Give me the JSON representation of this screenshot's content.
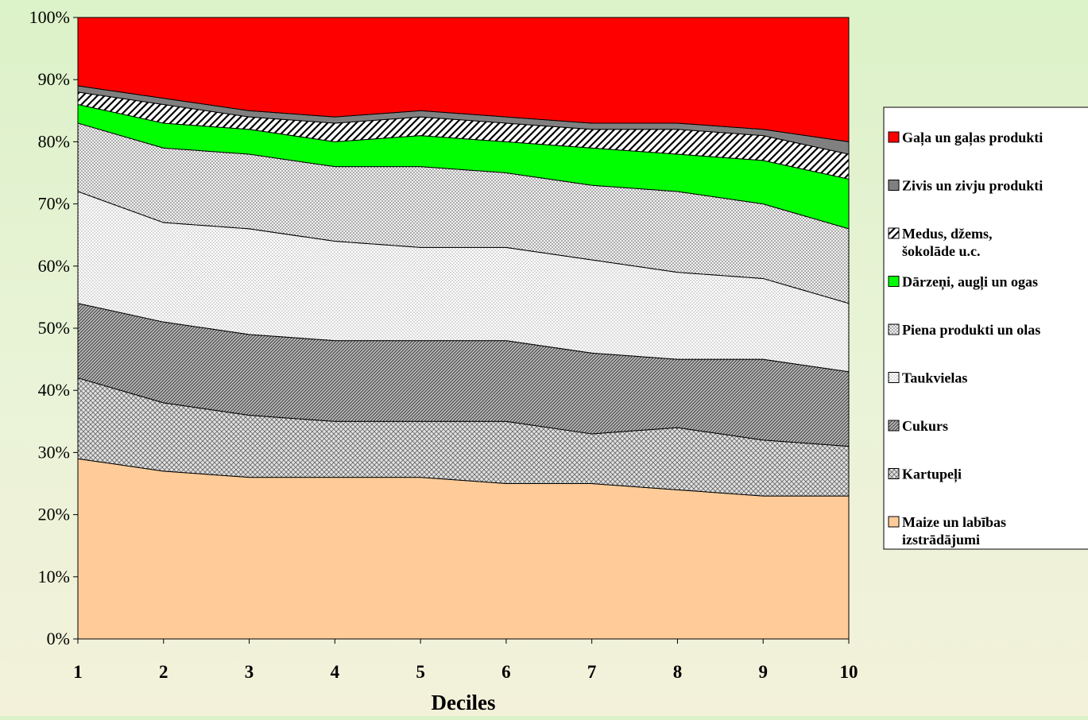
{
  "chart_data": {
    "type": "area",
    "stacked": "percent",
    "title": "",
    "xlabel": "Deciles",
    "ylabel": "",
    "x": [
      1,
      2,
      3,
      4,
      5,
      6,
      7,
      8,
      9,
      10
    ],
    "ylim": [
      0,
      100
    ],
    "y_ticks": [
      "0%",
      "10%",
      "20%",
      "30%",
      "40%",
      "50%",
      "60%",
      "70%",
      "80%",
      "90%",
      "100%"
    ],
    "grid": false,
    "legend_position": "right",
    "series": [
      {
        "name": "Maize un labības izstrādājumi",
        "color": "#ffcc99",
        "pattern": "solid",
        "values": [
          29,
          27,
          26,
          26,
          26,
          25,
          25,
          24,
          23,
          23
        ]
      },
      {
        "name": "Kartupeļi",
        "color": "#d0d0d0",
        "pattern": "cross-hatch",
        "values": [
          13,
          11,
          10,
          9,
          9,
          10,
          8,
          10,
          9,
          8
        ]
      },
      {
        "name": "Cukurs",
        "color": "#a0a0a0",
        "pattern": "dark-diagonal",
        "values": [
          12,
          13,
          13,
          13,
          13,
          13,
          13,
          11,
          13,
          12
        ]
      },
      {
        "name": "Taukvielas",
        "color": "#f4f4f4",
        "pattern": "fine-dots",
        "values": [
          18,
          16,
          17,
          16,
          15,
          15,
          15,
          14,
          13,
          11
        ]
      },
      {
        "name": "Piena produkti un olas",
        "color": "#e8e8e8",
        "pattern": "medium-dots",
        "values": [
          11,
          12,
          12,
          12,
          13,
          12,
          12,
          13,
          12,
          12
        ]
      },
      {
        "name": "Dārzeņi, augļi un ogas",
        "color": "#00ff00",
        "pattern": "solid",
        "values": [
          3,
          4,
          4,
          4,
          5,
          5,
          6,
          6,
          7,
          8
        ]
      },
      {
        "name": "Medus, džems, šokolāde u.c.",
        "color": "#ffffff",
        "pattern": "wide-diagonal",
        "values": [
          2,
          3,
          2,
          3,
          3,
          3,
          3,
          4,
          4,
          4
        ]
      },
      {
        "name": "Zivis un zivju produkti",
        "color": "#808080",
        "pattern": "solid",
        "values": [
          1,
          1,
          1,
          1,
          1,
          1,
          1,
          1,
          1,
          2
        ]
      },
      {
        "name": "Gaļa un gaļas produkti",
        "color": "#ff0000",
        "pattern": "solid",
        "values": [
          11,
          13,
          15,
          16,
          15,
          16,
          17,
          17,
          18,
          20
        ]
      }
    ],
    "legend_order": [
      8,
      7,
      6,
      5,
      4,
      3,
      2,
      1,
      0
    ],
    "legend_lines": [
      [
        "Gaļa un gaļas produkti"
      ],
      [
        "Zivis un zivju produkti"
      ],
      [
        "Medus, džems,",
        "šokolāde u.c."
      ],
      [
        "Dārzeņi, augļi un ogas"
      ],
      [
        "Piena produkti un olas"
      ],
      [
        "Taukvielas"
      ],
      [
        "Cukurs"
      ],
      [
        "Kartupeļi"
      ],
      [
        "Maize un labības",
        "izstrādājumi"
      ]
    ]
  }
}
